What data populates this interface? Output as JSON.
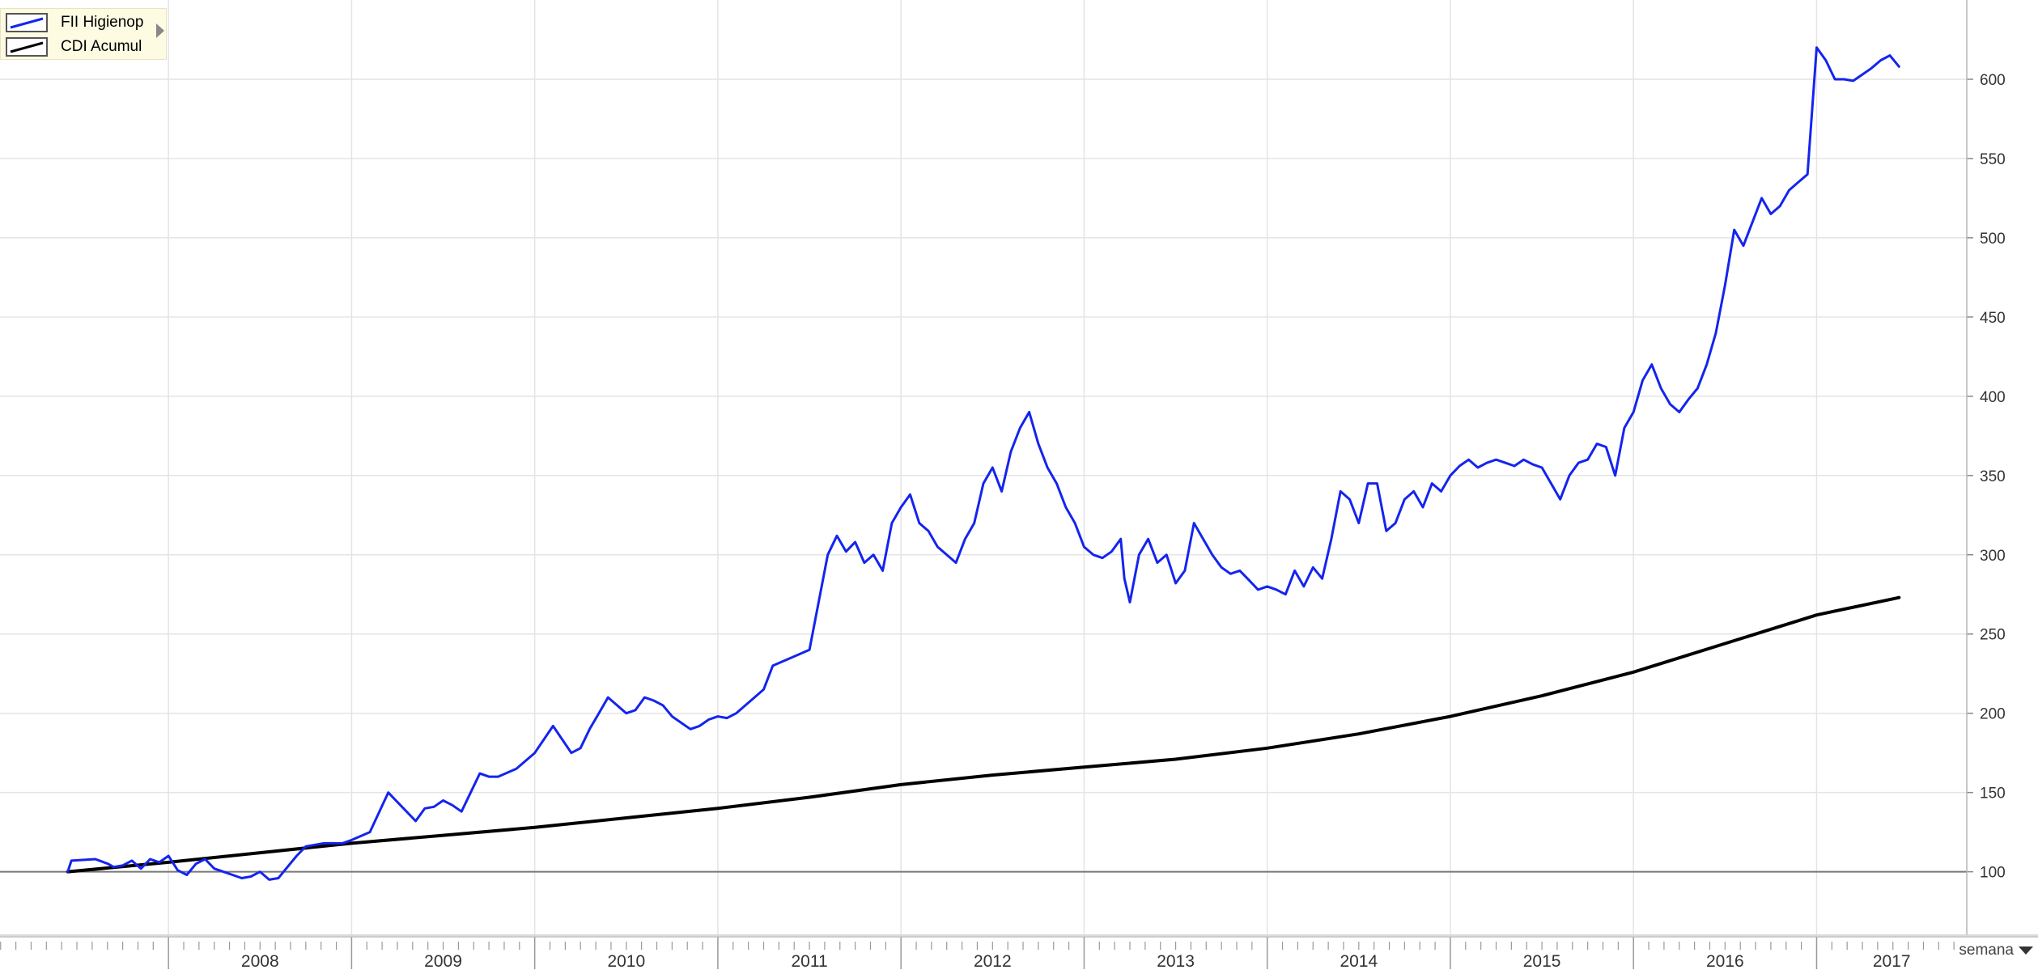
{
  "chart_data": {
    "type": "line",
    "title": "",
    "xlabel": "",
    "ylabel": "",
    "ylim": [
      60,
      650
    ],
    "xlim": [
      2007.08,
      2017.82
    ],
    "y_ticks": [
      100,
      150,
      200,
      250,
      300,
      350,
      400,
      450,
      500,
      550,
      600
    ],
    "x_ticks": [
      "2008",
      "2009",
      "2010",
      "2011",
      "2012",
      "2013",
      "2014",
      "2015",
      "2016",
      "2017"
    ],
    "baseline": 100,
    "grid": true,
    "legend_position": "top-left",
    "series": [
      {
        "name": "FII Higienop",
        "color": "#1424ee",
        "x": [
          2007.45,
          2007.47,
          2007.6,
          2007.67,
          2007.7,
          2007.75,
          2007.8,
          2007.85,
          2007.9,
          2007.95,
          2008.0,
          2008.05,
          2008.1,
          2008.15,
          2008.2,
          2008.25,
          2008.3,
          2008.35,
          2008.4,
          2008.45,
          2008.5,
          2008.55,
          2008.6,
          2008.65,
          2008.7,
          2008.75,
          2008.85,
          2008.95,
          2009.0,
          2009.1,
          2009.2,
          2009.3,
          2009.35,
          2009.4,
          2009.45,
          2009.5,
          2009.55,
          2009.6,
          2009.65,
          2009.7,
          2009.75,
          2009.8,
          2009.9,
          2010.0,
          2010.1,
          2010.2,
          2010.25,
          2010.3,
          2010.35,
          2010.4,
          2010.45,
          2010.5,
          2010.55,
          2010.6,
          2010.65,
          2010.7,
          2010.75,
          2010.8,
          2010.85,
          2010.9,
          2010.95,
          2011.0,
          2011.05,
          2011.1,
          2011.15,
          2011.2,
          2011.25,
          2011.3,
          2011.4,
          2011.5,
          2011.55,
          2011.6,
          2011.65,
          2011.7,
          2011.75,
          2011.8,
          2011.85,
          2011.9,
          2011.95,
          2012.0,
          2012.05,
          2012.1,
          2012.15,
          2012.2,
          2012.25,
          2012.3,
          2012.35,
          2012.4,
          2012.45,
          2012.5,
          2012.55,
          2012.6,
          2012.65,
          2012.7,
          2012.75,
          2012.8,
          2012.85,
          2012.9,
          2012.95,
          2013.0,
          2013.05,
          2013.1,
          2013.15,
          2013.2,
          2013.22,
          2013.25,
          2013.3,
          2013.35,
          2013.4,
          2013.45,
          2013.5,
          2013.55,
          2013.6,
          2013.65,
          2013.7,
          2013.75,
          2013.8,
          2013.85,
          2013.9,
          2013.95,
          2014.0,
          2014.05,
          2014.1,
          2014.15,
          2014.2,
          2014.25,
          2014.3,
          2014.35,
          2014.4,
          2014.45,
          2014.5,
          2014.55,
          2014.6,
          2014.65,
          2014.7,
          2014.75,
          2014.8,
          2014.85,
          2014.9,
          2014.95,
          2015.0,
          2015.05,
          2015.1,
          2015.15,
          2015.2,
          2015.25,
          2015.3,
          2015.35,
          2015.4,
          2015.45,
          2015.5,
          2015.55,
          2015.6,
          2015.65,
          2015.7,
          2015.75,
          2015.8,
          2015.85,
          2015.9,
          2015.95,
          2016.0,
          2016.05,
          2016.1,
          2016.15,
          2016.2,
          2016.25,
          2016.3,
          2016.35,
          2016.4,
          2016.45,
          2016.5,
          2016.55,
          2016.6,
          2016.65,
          2016.7,
          2016.75,
          2016.8,
          2016.85,
          2016.9,
          2016.95,
          2017.0,
          2017.05,
          2017.1,
          2017.15,
          2017.2,
          2017.25,
          2017.3,
          2017.35,
          2017.4,
          2017.45
        ],
        "y": [
          100,
          107,
          108,
          105,
          103,
          104,
          107,
          102,
          108,
          106,
          110,
          101,
          98,
          105,
          108,
          102,
          100,
          98,
          96,
          97,
          100,
          95,
          96,
          103,
          110,
          116,
          118,
          118,
          120,
          125,
          150,
          138,
          132,
          140,
          141,
          145,
          142,
          138,
          150,
          162,
          160,
          160,
          165,
          175,
          192,
          175,
          178,
          190,
          200,
          210,
          205,
          200,
          202,
          210,
          208,
          205,
          198,
          194,
          190,
          192,
          196,
          198,
          197,
          200,
          205,
          210,
          215,
          230,
          235,
          240,
          270,
          300,
          312,
          302,
          308,
          295,
          300,
          290,
          320,
          330,
          338,
          320,
          315,
          305,
          300,
          295,
          310,
          320,
          345,
          355,
          340,
          365,
          380,
          390,
          370,
          355,
          345,
          330,
          320,
          305,
          300,
          298,
          302,
          310,
          285,
          270,
          300,
          310,
          295,
          300,
          282,
          290,
          320,
          310,
          300,
          292,
          288,
          290,
          284,
          278,
          280,
          278,
          275,
          290,
          280,
          292,
          285,
          310,
          340,
          335,
          320,
          345,
          345,
          315,
          320,
          335,
          340,
          330,
          345,
          340,
          350,
          356,
          360,
          355,
          358,
          360,
          358,
          356,
          360,
          357,
          355,
          345,
          335,
          350,
          358,
          360,
          370,
          368,
          350,
          380,
          390,
          410,
          420,
          405,
          395,
          390,
          398,
          405,
          420,
          440,
          470,
          505,
          495,
          510,
          525,
          515,
          520,
          530,
          535,
          540,
          620,
          612,
          600,
          600,
          599,
          603,
          607,
          612,
          615,
          608
        ]
      },
      {
        "name": "CDI Acumul",
        "color": "#000000",
        "x": [
          2007.45,
          2008.0,
          2008.5,
          2009.0,
          2009.5,
          2010.0,
          2010.5,
          2011.0,
          2011.5,
          2012.0,
          2012.5,
          2013.0,
          2013.5,
          2014.0,
          2014.5,
          2015.0,
          2015.5,
          2016.0,
          2016.5,
          2017.0,
          2017.45
        ],
        "y": [
          100,
          106,
          112,
          118,
          123,
          128,
          134,
          140,
          147,
          155,
          161,
          166,
          171,
          178,
          187,
          198,
          211,
          226,
          244,
          262,
          273
        ]
      }
    ]
  },
  "legend": {
    "items": [
      {
        "label": "FII Higienop",
        "color": "#1424ee"
      },
      {
        "label": "CDI Acumul",
        "color": "#000000"
      }
    ]
  },
  "period_selector": {
    "label": "semana"
  }
}
